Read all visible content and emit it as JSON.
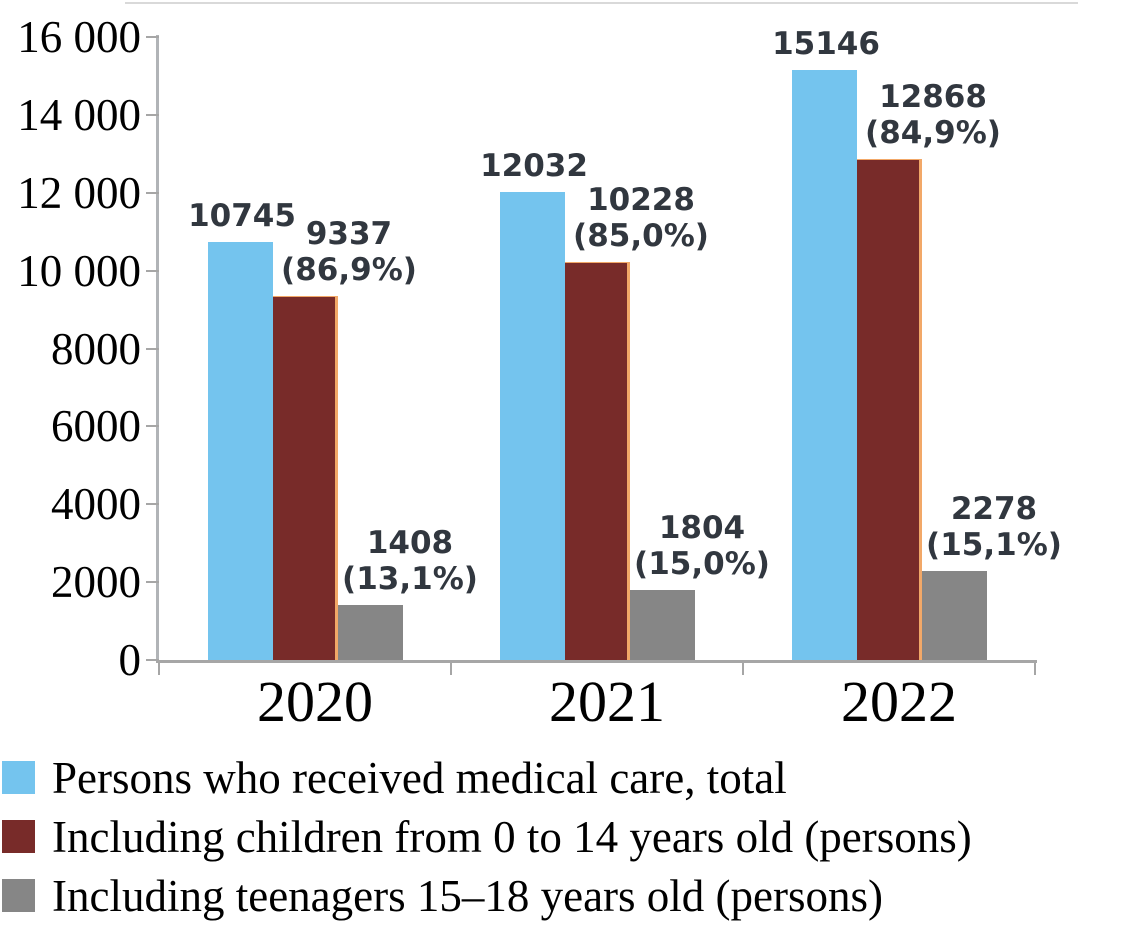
{
  "chart_data": {
    "type": "bar",
    "categories": [
      "2020",
      "2021",
      "2022"
    ],
    "series": [
      {
        "name": "Persons who received medical care, total",
        "color": "#74c4ee",
        "values": [
          10745,
          12032,
          15146
        ],
        "data_labels": [
          [
            "10745"
          ],
          [
            "12032"
          ],
          [
            "15146"
          ]
        ]
      },
      {
        "name": "Including children from 0 to 14 years old (persons)",
        "color": "#782b29",
        "border_color": "#f2a868",
        "values": [
          9337,
          10228,
          12868
        ],
        "data_labels": [
          [
            "9337",
            "(86,9%)"
          ],
          [
            "10228",
            "(85,0%)"
          ],
          [
            "12868",
            "(84,9%)"
          ]
        ]
      },
      {
        "name": "Including teenagers 15–18 years old (persons)",
        "color": "#868686",
        "values": [
          1408,
          1804,
          2278
        ],
        "data_labels": [
          [
            "1408",
            "(13,1%)"
          ],
          [
            "1804",
            "(15,0%)"
          ],
          [
            "2278",
            "(15,1%)"
          ]
        ]
      }
    ],
    "title": "",
    "xlabel": "",
    "ylabel": "",
    "ylim": [
      0,
      16000
    ],
    "y_ticks": [
      "0",
      "2000",
      "4000",
      "6000",
      "8000",
      "10 000",
      "12 000",
      "14 000",
      "16 000"
    ],
    "y_tick_step": 2000,
    "grid": false,
    "legend_position": "bottom-left"
  },
  "colors": {
    "axis_line": "#a6a6a6",
    "plot_top_border": "#d9d9d9",
    "data_label_text": "#31373f",
    "tick_label_text": "#000000"
  }
}
